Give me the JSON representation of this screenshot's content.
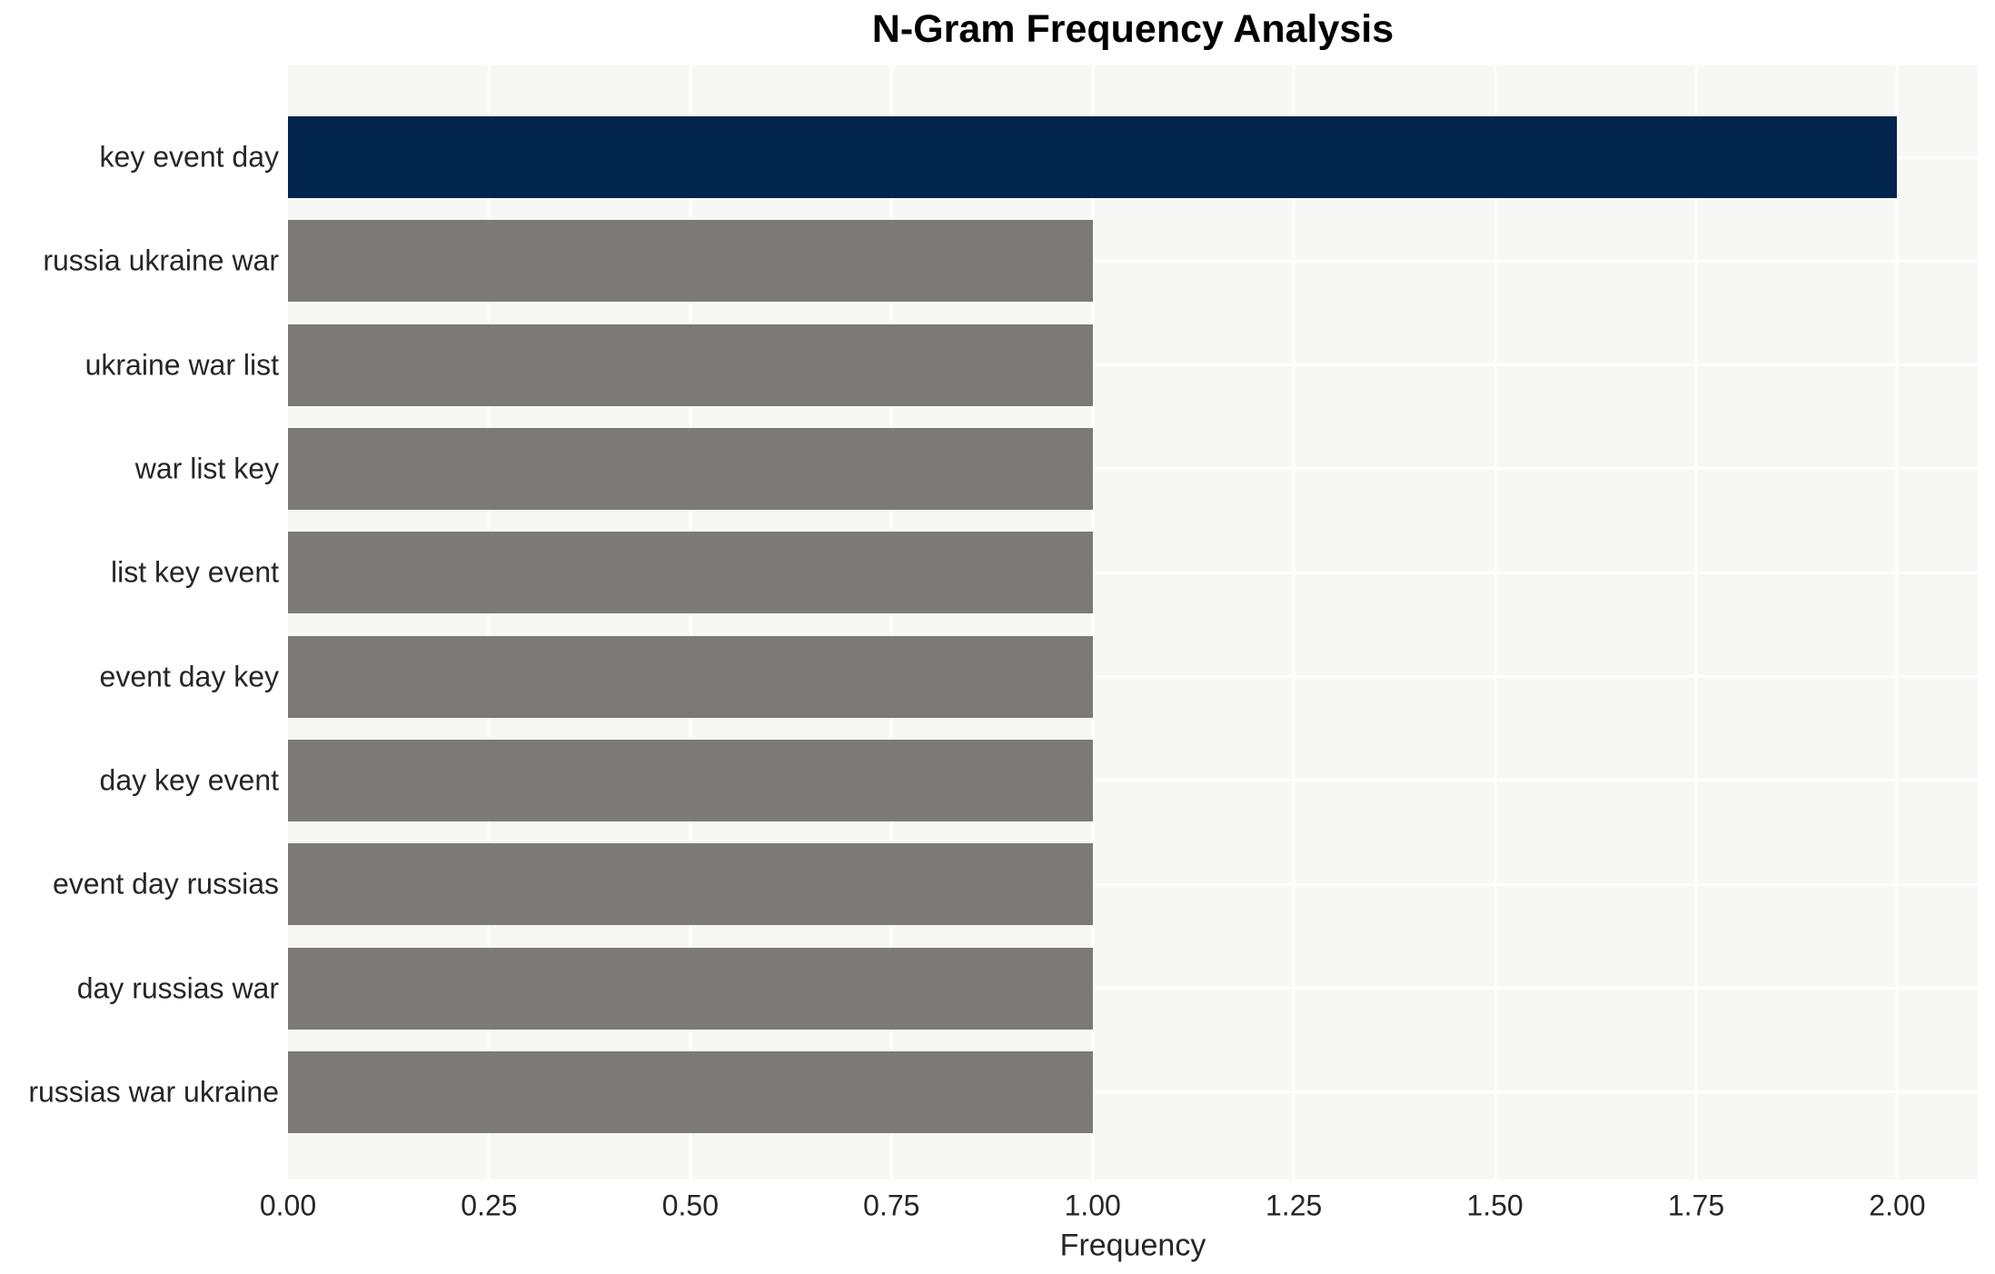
{
  "title": "N-Gram Frequency Analysis",
  "chart_data": {
    "type": "bar",
    "orientation": "horizontal",
    "title": "N-Gram Frequency Analysis",
    "xlabel": "Frequency",
    "ylabel": "",
    "categories": [
      "key event day",
      "russia ukraine war",
      "ukraine war list",
      "war list key",
      "list key event",
      "event day key",
      "day key event",
      "event day russias",
      "day russias war",
      "russias war ukraine"
    ],
    "values": [
      2,
      1,
      1,
      1,
      1,
      1,
      1,
      1,
      1,
      1
    ],
    "highlight_index": 0,
    "xlim": [
      0,
      2.1
    ],
    "xtick_values": [
      0,
      0.25,
      0.5,
      0.75,
      1.0,
      1.25,
      1.5,
      1.75,
      2.0
    ],
    "xtick_labels": [
      "0.00",
      "0.25",
      "0.50",
      "0.75",
      "1.00",
      "1.25",
      "1.50",
      "1.75",
      "2.00"
    ],
    "grid": true,
    "legend": false,
    "colors": {
      "highlight_bar": "#02254e",
      "bar": "#7b7a76",
      "plot_background": "#f7f7f6",
      "gridline": "#ffffff",
      "tick_text": "#262626",
      "title_text": "#000000"
    }
  }
}
